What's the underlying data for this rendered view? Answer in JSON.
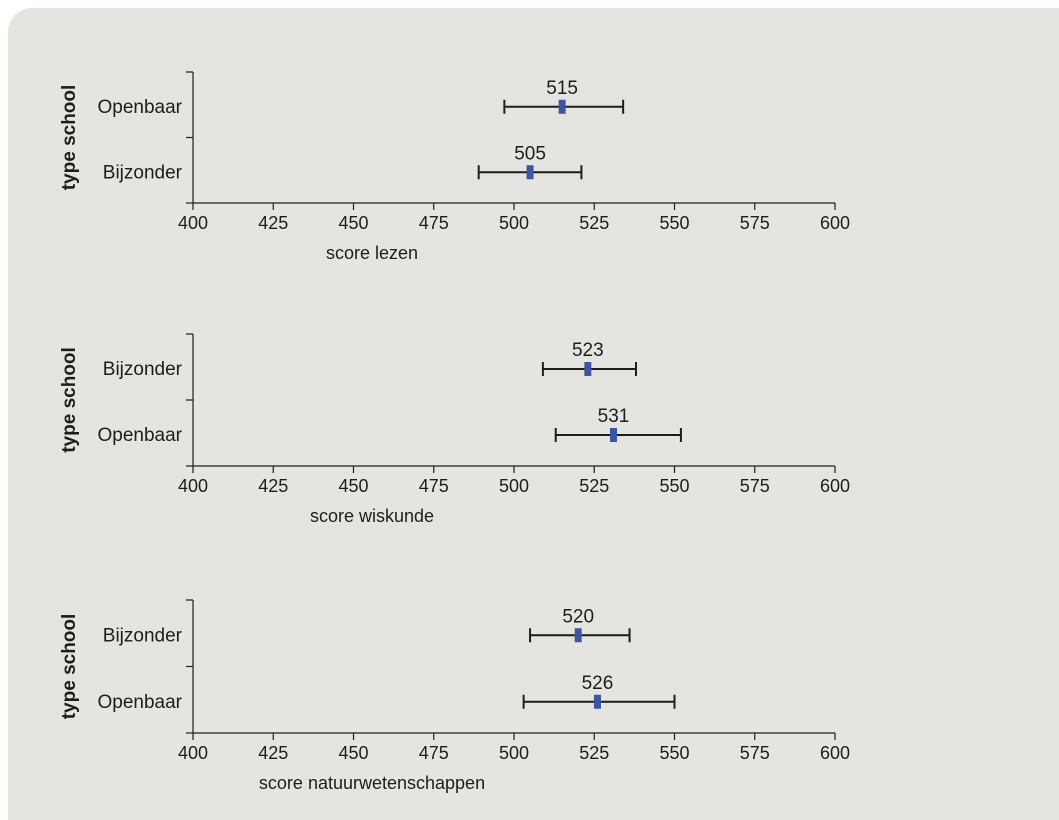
{
  "chart_data": [
    {
      "type": "errorbar",
      "ylabel": "type school",
      "xlabel": "score lezen",
      "xlim": [
        400,
        600
      ],
      "xticks": [
        400,
        425,
        450,
        475,
        500,
        525,
        550,
        575,
        600
      ],
      "categories": [
        "Openbaar",
        "Bijzonder"
      ],
      "values": [
        515,
        505
      ],
      "ci_low": [
        497,
        489
      ],
      "ci_high": [
        534,
        521
      ],
      "marker_color": "#3b57a4"
    },
    {
      "type": "errorbar",
      "ylabel": "type school",
      "xlabel": "score wiskunde",
      "xlim": [
        400,
        600
      ],
      "xticks": [
        400,
        425,
        450,
        475,
        500,
        525,
        550,
        575,
        600
      ],
      "categories": [
        "Bijzonder",
        "Openbaar"
      ],
      "values": [
        523,
        531
      ],
      "ci_low": [
        509,
        513
      ],
      "ci_high": [
        538,
        552
      ],
      "marker_color": "#3b57a4"
    },
    {
      "type": "errorbar",
      "ylabel": "type school",
      "xlabel": "score natuurwetenschappen",
      "xlim": [
        400,
        600
      ],
      "xticks": [
        400,
        425,
        450,
        475,
        500,
        525,
        550,
        575,
        600
      ],
      "categories": [
        "Bijzonder",
        "Openbaar"
      ],
      "values": [
        520,
        526
      ],
      "ci_low": [
        505,
        503
      ],
      "ci_high": [
        536,
        550
      ],
      "marker_color": "#3b57a4"
    }
  ],
  "colors": {
    "panel": "#e6e4e1",
    "ink": "#1d1d1b",
    "marker": "#3b57a4"
  }
}
